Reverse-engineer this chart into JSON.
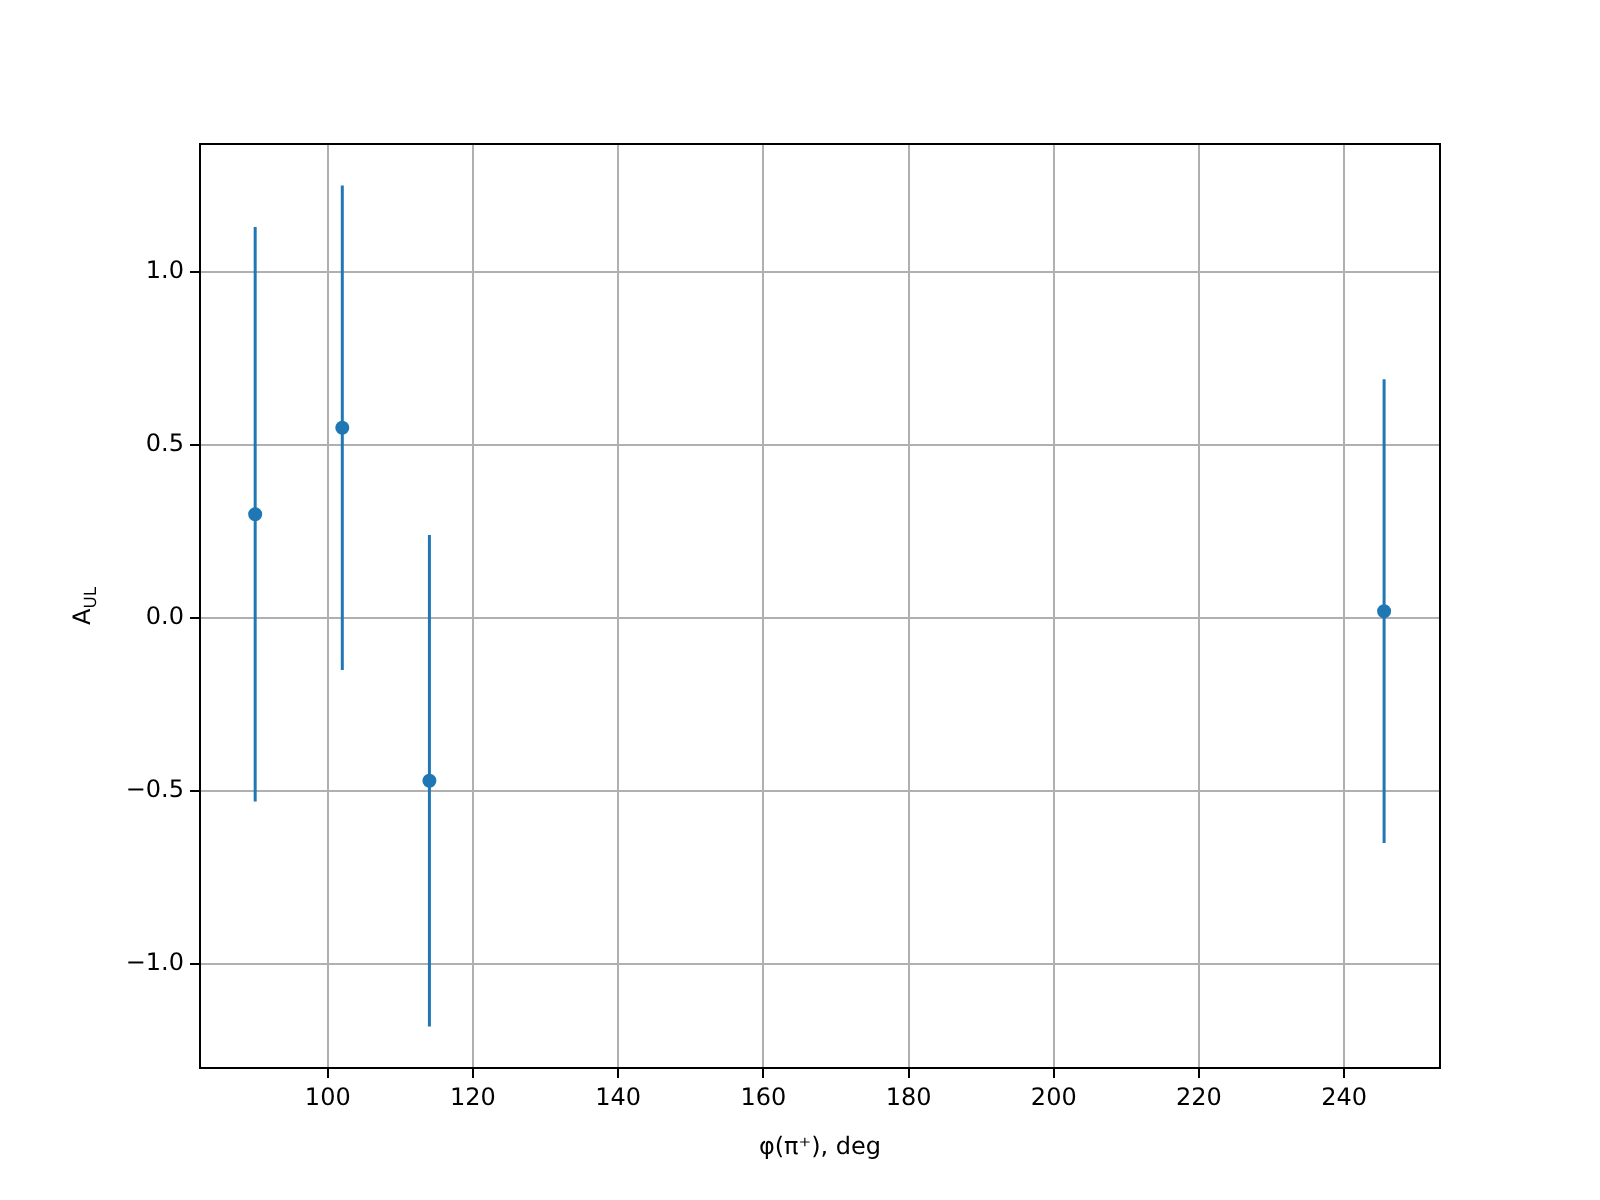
{
  "chart_data": {
    "type": "scatter",
    "xlabel": "φ(π⁺), deg",
    "ylabel": "A$_{UL}$",
    "x": [
      90,
      102,
      114,
      245.5
    ],
    "series": [
      {
        "color": "#1f77b4",
        "values": [
          0.3,
          0.55,
          -0.47,
          0.02
        ],
        "errors": [
          0.83,
          0.7,
          0.71,
          0.67
        ]
      }
    ],
    "xlim": [
      82.4,
      253.2
    ],
    "ylim": [
      -1.3,
      1.37
    ],
    "xticks": [
      100,
      120,
      140,
      160,
      180,
      200,
      220,
      240
    ],
    "yticks": [
      {
        "value": -1,
        "label": "−1.0"
      },
      {
        "value": -0.5,
        "label": "−0.5"
      },
      {
        "value": 0,
        "label": "0.0"
      },
      {
        "value": 0.5,
        "label": "0.5"
      },
      {
        "value": 1,
        "label": "1.0"
      }
    ],
    "grid": true,
    "marker": "circle",
    "legend": false
  }
}
